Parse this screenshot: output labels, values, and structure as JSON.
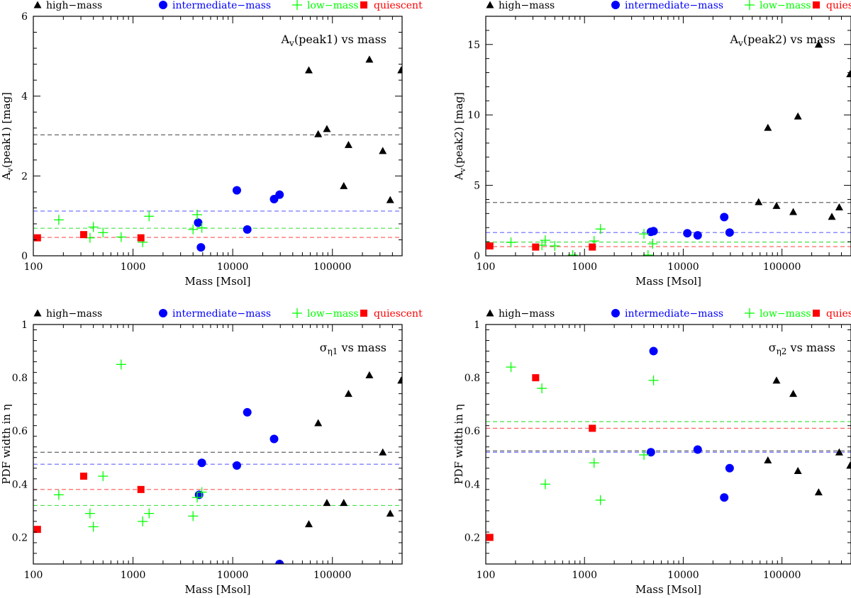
{
  "figure_title": "Extinction peaks and PDF widths vs mass",
  "legend_items": [
    {
      "label": "high−mass",
      "color": "#000000",
      "marker": "triangle"
    },
    {
      "label": "intermediate−mass",
      "color": "#0000ff",
      "marker": "circle"
    },
    {
      "label": "low−mass",
      "color": "#00ff00",
      "marker": "plus"
    },
    {
      "label": "quiescent",
      "color": "#ff0000",
      "marker": "square"
    }
  ],
  "chart_data": [
    {
      "type": "scatter",
      "title_main": "A",
      "title_sub": "v",
      "title_rest": "(peak1) vs mass",
      "xlabel": "Mass [Msol]",
      "ylabel_main": "A",
      "ylabel_sub": "v",
      "ylabel_rest": "(peak1) [mag]",
      "xscale": "log",
      "xlim": [
        100,
        500000
      ],
      "ylim": [
        0,
        6
      ],
      "xticks": [
        100,
        1000,
        10000,
        100000
      ],
      "xtick_labels": [
        "100",
        "1000",
        "10000",
        "100000"
      ],
      "yticks": [
        0,
        2,
        4,
        6
      ],
      "ytick_labels": [
        "0",
        "2",
        "4",
        "6"
      ],
      "series": [
        {
          "name": "high−mass",
          "x": [
            58000,
            72000,
            88000,
            130000,
            145000,
            235000,
            320000,
            380000,
            490000
          ],
          "y": [
            4.65,
            3.05,
            3.18,
            1.75,
            2.78,
            4.92,
            2.63,
            1.4,
            4.65
          ]
        },
        {
          "name": "intermediate−mass",
          "x": [
            4500,
            4800,
            11000,
            14000,
            26000,
            29500
          ],
          "y": [
            0.83,
            0.21,
            1.64,
            0.66,
            1.42,
            1.53
          ]
        },
        {
          "name": "low−mass",
          "x": [
            180,
            370,
            400,
            500,
            760,
            1250,
            1450,
            4000,
            4400,
            4900
          ],
          "y": [
            0.9,
            0.45,
            0.72,
            0.58,
            0.47,
            0.34,
            0.99,
            0.66,
            1.03,
            0.7
          ]
        },
        {
          "name": "quiescent",
          "x": [
            110,
            320,
            1200
          ],
          "y": [
            0.45,
            0.53,
            0.45
          ]
        }
      ],
      "reference_lines": [
        {
          "series": "high−mass",
          "y": 3.03
        },
        {
          "series": "intermediate−mass",
          "y": 1.12
        },
        {
          "series": "low−mass",
          "y": 0.69
        },
        {
          "series": "quiescent",
          "y": 0.46
        }
      ]
    },
    {
      "type": "scatter",
      "title_main": "A",
      "title_sub": "v",
      "title_rest": "(peak2) vs mass",
      "xlabel": "Mass [Msol]",
      "ylabel_main": "A",
      "ylabel_sub": "v",
      "ylabel_rest": "(peak2) [mag]",
      "xscale": "log",
      "xlim": [
        100,
        500000
      ],
      "ylim": [
        0,
        17
      ],
      "xticks": [
        100,
        1000,
        10000,
        100000
      ],
      "xtick_labels": [
        "100",
        "1000",
        "10000",
        "100000"
      ],
      "yticks": [
        0,
        5,
        10,
        15
      ],
      "ytick_labels": [
        "0",
        "5",
        "10",
        "15"
      ],
      "series": [
        {
          "name": "high−mass",
          "x": [
            58000,
            72000,
            88000,
            130000,
            145000,
            235000,
            320000,
            380000,
            490000
          ],
          "y": [
            3.82,
            9.1,
            3.55,
            3.12,
            9.9,
            15.0,
            2.78,
            3.45,
            12.9
          ]
        },
        {
          "name": "intermediate−mass",
          "x": [
            4700,
            5000,
            11000,
            14000,
            26000,
            29500
          ],
          "y": [
            1.7,
            1.75,
            1.6,
            1.45,
            2.75,
            1.65
          ]
        },
        {
          "name": "low−mass",
          "x": [
            180,
            370,
            400,
            500,
            760,
            1250,
            1450,
            4000,
            4400,
            4900
          ],
          "y": [
            0.95,
            0.75,
            1.1,
            0.7,
            0.05,
            1.05,
            1.9,
            1.55,
            0.05,
            0.85
          ]
        },
        {
          "name": "quiescent",
          "x": [
            110,
            320,
            1200
          ],
          "y": [
            0.7,
            0.62,
            0.62
          ]
        }
      ],
      "reference_lines": [
        {
          "series": "high−mass",
          "y": 3.78
        },
        {
          "series": "intermediate−mass",
          "y": 1.65
        },
        {
          "series": "low−mass",
          "y": 0.97
        },
        {
          "series": "quiescent",
          "y": 0.65
        }
      ]
    },
    {
      "type": "scatter",
      "title_main": "σ",
      "title_sub": "η1",
      "title_rest": " vs mass",
      "xlabel": "Mass [Msol]",
      "ylabel_main": "PDF width in η",
      "ylabel_sub": "",
      "ylabel_rest": "",
      "xscale": "log",
      "xlim": [
        100,
        500000
      ],
      "ylim": [
        0.1,
        1.0
      ],
      "xticks": [
        100,
        1000,
        10000,
        100000
      ],
      "xtick_labels": [
        "100",
        "1000",
        "10000",
        "100000"
      ],
      "yticks": [
        0.2,
        0.4,
        0.6,
        0.8,
        1.0
      ],
      "ytick_labels": [
        "0.2",
        "0.4",
        "0.6",
        "0.8",
        "1"
      ],
      "series": [
        {
          "name": "high−mass",
          "x": [
            58000,
            72000,
            88000,
            130000,
            145000,
            235000,
            320000,
            380000,
            490000
          ],
          "y": [
            0.25,
            0.63,
            0.33,
            0.33,
            0.74,
            0.81,
            0.52,
            0.29,
            0.79
          ]
        },
        {
          "name": "intermediate−mass",
          "x": [
            4600,
            4900,
            11000,
            14000,
            26000,
            29500
          ],
          "y": [
            0.36,
            0.48,
            0.47,
            0.67,
            0.57,
            0.1
          ]
        },
        {
          "name": "low−mass",
          "x": [
            180,
            370,
            400,
            500,
            760,
            1250,
            1450,
            4000,
            4400,
            4900
          ],
          "y": [
            0.36,
            0.29,
            0.24,
            0.43,
            0.85,
            0.26,
            0.29,
            0.28,
            0.35,
            0.37
          ]
        },
        {
          "name": "quiescent",
          "x": [
            110,
            320,
            1200
          ],
          "y": [
            0.23,
            0.43,
            0.38
          ]
        }
      ],
      "reference_lines": [
        {
          "series": "high−mass",
          "y": 0.52
        },
        {
          "series": "intermediate−mass",
          "y": 0.475
        },
        {
          "series": "low−mass",
          "y": 0.32
        },
        {
          "series": "quiescent",
          "y": 0.38
        }
      ]
    },
    {
      "type": "scatter",
      "title_main": "σ",
      "title_sub": "η2",
      "title_rest": " vs mass",
      "xlabel": "Mass [Msol]",
      "ylabel_main": "PDF width in η",
      "ylabel_sub": "",
      "ylabel_rest": "",
      "xscale": "log",
      "xlim": [
        100,
        500000
      ],
      "ylim": [
        0.1,
        1.0
      ],
      "xticks": [
        100,
        1000,
        10000,
        100000
      ],
      "xtick_labels": [
        "100",
        "1000",
        "10000",
        "100000"
      ],
      "yticks": [
        0.2,
        0.4,
        0.6,
        0.8,
        1.0
      ],
      "ytick_labels": [
        "0.2",
        "0.4",
        "0.6",
        "0.8",
        "1"
      ],
      "series": [
        {
          "name": "high−mass",
          "x": [
            72000,
            88000,
            130000,
            145000,
            235000,
            380000,
            490000
          ],
          "y": [
            0.49,
            0.79,
            0.74,
            0.45,
            0.37,
            0.52,
            0.47
          ]
        },
        {
          "name": "intermediate−mass",
          "x": [
            4700,
            5000,
            14000,
            26000,
            29500
          ],
          "y": [
            0.52,
            0.9,
            0.53,
            0.35,
            0.46
          ]
        },
        {
          "name": "low−mass",
          "x": [
            180,
            370,
            400,
            1250,
            1450,
            4000,
            5000
          ],
          "y": [
            0.84,
            0.76,
            0.4,
            0.48,
            0.34,
            0.51,
            0.79
          ]
        },
        {
          "name": "quiescent",
          "x": [
            110,
            320,
            1200
          ],
          "y": [
            0.2,
            0.8,
            0.61
          ]
        }
      ],
      "reference_lines": [
        {
          "series": "high−mass",
          "y": 0.525
        },
        {
          "series": "intermediate−mass",
          "y": 0.52
        },
        {
          "series": "low−mass",
          "y": 0.635
        },
        {
          "series": "quiescent",
          "y": 0.61
        }
      ]
    }
  ],
  "colors": {
    "high−mass": "#000000",
    "intermediate−mass": "#0000ff",
    "low−mass": "#00ff00",
    "quiescent": "#ff0000",
    "ref_high−mass": "#555555",
    "ref_intermediate−mass": "#6666ff",
    "ref_low−mass": "#33dd33",
    "ref_quiescent": "#ff5555"
  }
}
